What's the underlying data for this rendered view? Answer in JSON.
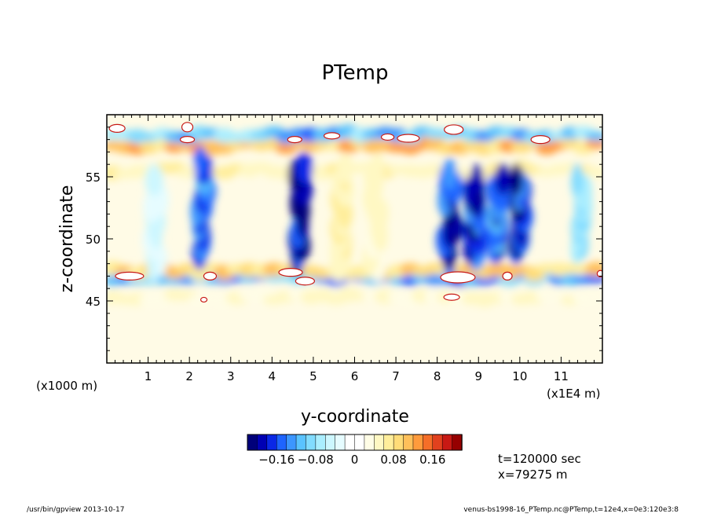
{
  "chart_data": {
    "type": "heatmap",
    "title": "PTemp",
    "xlabel": "y-coordinate",
    "ylabel": "z-coordinate",
    "x_unit_label": "(x1E4 m)",
    "y_unit_label": "(x1000 m)",
    "xlim": [
      0,
      12
    ],
    "ylim": [
      40,
      60
    ],
    "x_ticks": [
      1,
      2,
      3,
      4,
      5,
      6,
      7,
      8,
      9,
      10,
      11
    ],
    "y_ticks": [
      45,
      50,
      55
    ],
    "colorbar": {
      "vmin": -0.22,
      "vmax": 0.22,
      "levels": 22,
      "tick_values": [
        -0.16,
        -0.08,
        0,
        0.08,
        0.16
      ],
      "tick_labels": [
        "−0.16",
        "−0.08",
        "0",
        "0.08",
        "0.16"
      ],
      "colors": [
        "#00007a",
        "#0000b4",
        "#0a28e6",
        "#1e64ff",
        "#3c96ff",
        "#5ac3ff",
        "#82dcff",
        "#aaeeff",
        "#cdf7ff",
        "#e6fcff",
        "#ffffff",
        "#ffffff",
        "#fffde6",
        "#fff8c3",
        "#ffee9b",
        "#ffdc78",
        "#ffc05a",
        "#ff9b3c",
        "#f56e28",
        "#e1411e",
        "#c81914",
        "#960000"
      ]
    },
    "features": [
      {
        "kind": "band",
        "z": 57.5,
        "y_from": 0.0,
        "y_to": 12.0,
        "value": 0.12
      },
      {
        "kind": "band",
        "z": 58.4,
        "y_from": 0.0,
        "y_to": 12.0,
        "value": -0.12
      },
      {
        "kind": "band",
        "z": 55.5,
        "y_from": 0.0,
        "y_to": 12.0,
        "value": 0.06
      },
      {
        "kind": "band",
        "z": 46.9,
        "y_from": 0.0,
        "y_to": 12.0,
        "value": -0.14
      },
      {
        "kind": "band",
        "z": 47.4,
        "y_from": 0.0,
        "y_to": 12.0,
        "value": 0.1
      },
      {
        "kind": "band",
        "z": 45.3,
        "y_from": 0.0,
        "y_to": 12.0,
        "value": 0.05
      },
      {
        "kind": "column",
        "y": 2.3,
        "z_from": 48.5,
        "z_to": 56.5,
        "value": -0.16
      },
      {
        "kind": "column",
        "y": 4.7,
        "z_from": 48.0,
        "z_to": 56.0,
        "value": -0.2
      },
      {
        "kind": "column",
        "y": 8.3,
        "z_from": 48.0,
        "z_to": 55.5,
        "value": -0.18
      },
      {
        "kind": "column",
        "y": 8.9,
        "z_from": 48.5,
        "z_to": 55.0,
        "value": -0.18
      },
      {
        "kind": "column",
        "y": 9.5,
        "z_from": 49.0,
        "z_to": 55.0,
        "value": -0.16
      },
      {
        "kind": "column",
        "y": 10.0,
        "z_from": 49.0,
        "z_to": 55.0,
        "value": -0.18
      },
      {
        "kind": "column",
        "y": 11.5,
        "z_from": 49.0,
        "z_to": 55.0,
        "value": -0.08
      },
      {
        "kind": "column",
        "y": 5.7,
        "z_from": 47.5,
        "z_to": 56.0,
        "value": 0.06
      },
      {
        "kind": "column",
        "y": 6.5,
        "z_from": 47.5,
        "z_to": 56.0,
        "value": 0.05
      },
      {
        "kind": "column",
        "y": 1.2,
        "z_from": 47.5,
        "z_to": 55.0,
        "value": -0.05
      }
    ]
  },
  "footer": {
    "time_label": "t=120000 sec",
    "x_label": "x=79275 m",
    "program": "/usr/bin/gpview  2013-10-17",
    "source": "venus-bs1998-16_PTemp.nc@PTemp,t=12e4,x=0e3:120e3:8"
  }
}
